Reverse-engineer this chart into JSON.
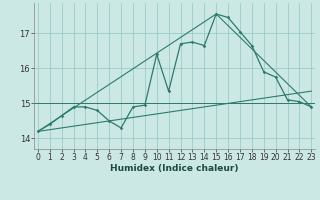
{
  "title": "",
  "xlabel": "Humidex (Indice chaleur)",
  "bg_color": "#cce8e4",
  "grid_color": "#99cccc",
  "line_color": "#2d7a6e",
  "x_ticks": [
    0,
    1,
    2,
    3,
    4,
    5,
    6,
    7,
    8,
    9,
    10,
    11,
    12,
    13,
    14,
    15,
    16,
    17,
    18,
    19,
    20,
    21,
    22,
    23
  ],
  "y_ticks": [
    14,
    15,
    16,
    17
  ],
  "ylim": [
    13.7,
    17.85
  ],
  "xlim": [
    -0.3,
    23.3
  ],
  "series1_x": [
    0,
    1,
    2,
    3,
    4,
    5,
    6,
    7,
    8,
    9,
    10,
    11,
    12,
    13,
    14,
    15,
    16,
    17,
    18,
    19,
    20,
    21,
    22,
    23
  ],
  "series1_y": [
    14.2,
    14.4,
    14.65,
    14.9,
    14.9,
    14.8,
    14.5,
    14.3,
    14.9,
    14.95,
    16.4,
    15.35,
    16.7,
    16.75,
    16.65,
    17.55,
    17.45,
    17.05,
    16.65,
    15.9,
    15.75,
    15.1,
    15.05,
    14.9
  ],
  "series2_x": [
    0,
    23
  ],
  "series2_y": [
    14.2,
    15.35
  ],
  "series3_x": [
    0,
    15,
    23
  ],
  "series3_y": [
    14.2,
    17.55,
    14.9
  ],
  "hline_y": 15.0
}
